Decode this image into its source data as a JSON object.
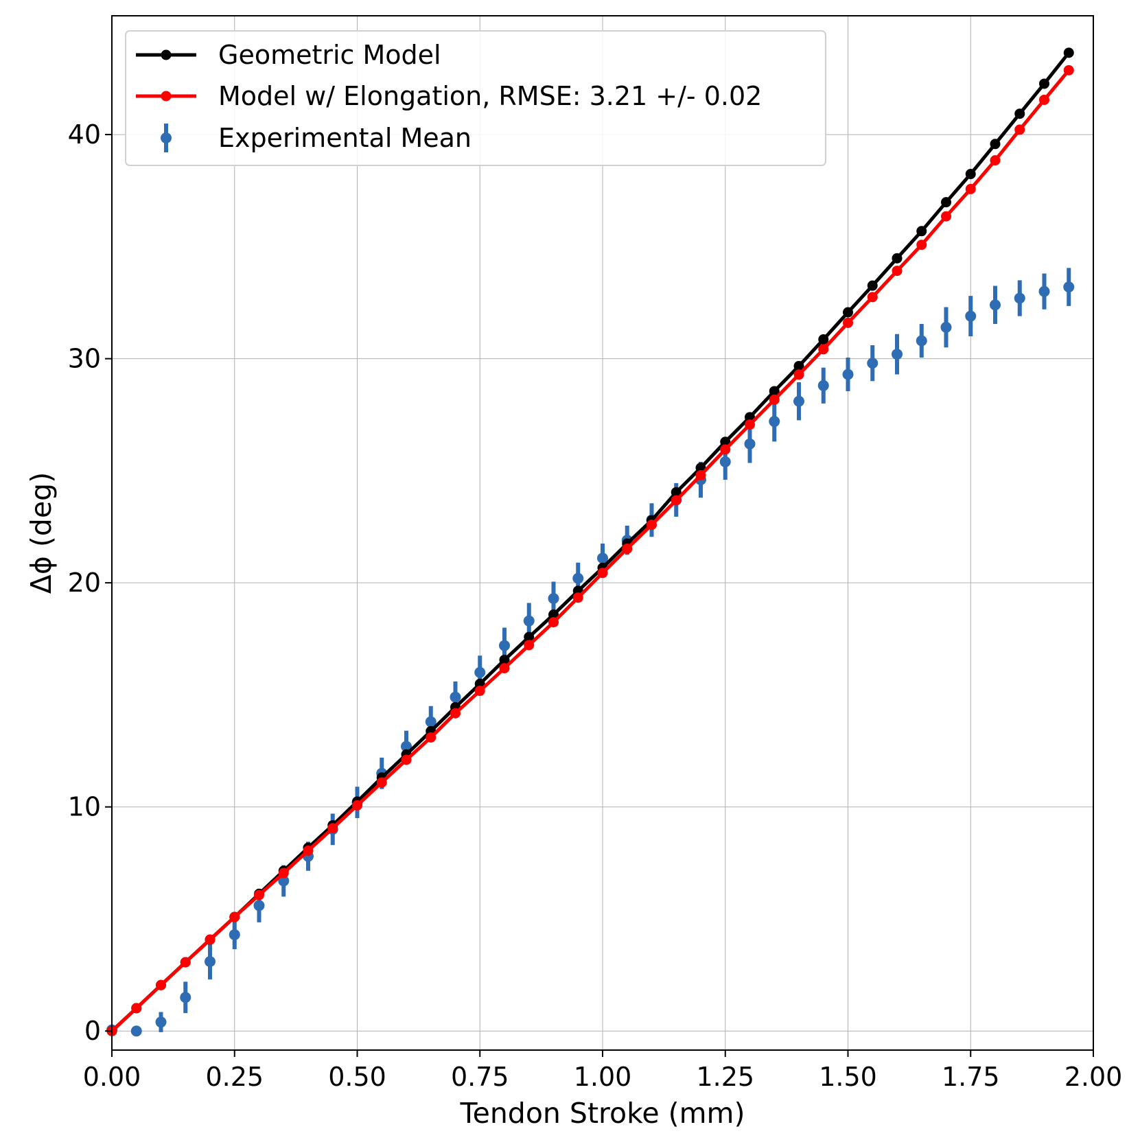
{
  "chart_data": {
    "type": "line",
    "xlabel": "Tendon Stroke (mm)",
    "ylabel": "Δϕ (deg)",
    "xlim": [
      0.0,
      2.0
    ],
    "ylim": [
      -0.85,
      45.3
    ],
    "xticks": [
      "0.00",
      "0.25",
      "0.50",
      "0.75",
      "1.00",
      "1.25",
      "1.50",
      "1.75",
      "2.00"
    ],
    "yticks": [
      "0",
      "10",
      "20",
      "30",
      "40"
    ],
    "grid": true,
    "legend_position": "top-left",
    "x": [
      0.0,
      0.05,
      0.1,
      0.15,
      0.2,
      0.25,
      0.3,
      0.35,
      0.4,
      0.45,
      0.5,
      0.55,
      0.6,
      0.65,
      0.7,
      0.75,
      0.8,
      0.85,
      0.9,
      0.95,
      1.0,
      1.05,
      1.1,
      1.15,
      1.2,
      1.25,
      1.3,
      1.35,
      1.4,
      1.45,
      1.5,
      1.55,
      1.6,
      1.65,
      1.7,
      1.75,
      1.8,
      1.85,
      1.9,
      1.95
    ],
    "series": [
      {
        "name": "Geometric Model",
        "color": "#000000",
        "values": [
          0.0,
          1.02,
          2.05,
          3.07,
          4.08,
          5.09,
          6.12,
          7.15,
          8.18,
          9.18,
          10.24,
          11.31,
          12.34,
          13.38,
          14.45,
          15.49,
          16.56,
          17.58,
          18.58,
          19.64,
          20.67,
          21.75,
          22.79,
          24.04,
          25.13,
          26.29,
          27.39,
          28.55,
          29.67,
          30.86,
          32.07,
          33.26,
          34.48,
          35.69,
          36.98,
          38.24,
          39.58,
          40.93,
          42.27,
          43.65
        ]
      },
      {
        "name": "Model w/ Elongation, RMSE: 3.21 +/- 0.02",
        "color": "#ff0000",
        "values": [
          0.0,
          1.02,
          2.05,
          3.07,
          4.08,
          5.09,
          6.07,
          7.05,
          8.05,
          9.05,
          10.07,
          11.09,
          12.1,
          13.1,
          14.18,
          15.18,
          16.19,
          17.22,
          18.24,
          19.34,
          20.44,
          21.52,
          22.59,
          23.68,
          24.8,
          25.95,
          27.06,
          28.17,
          29.29,
          30.42,
          31.6,
          32.75,
          33.92,
          35.08,
          36.35,
          37.57,
          38.85,
          40.22,
          41.55,
          42.87
        ]
      },
      {
        "name": "Experimental Mean",
        "color": "#2e6cb3",
        "values": [
          0.05,
          0.0,
          0.4,
          1.5,
          3.1,
          4.3,
          5.6,
          6.7,
          7.8,
          9.0,
          10.2,
          11.5,
          12.7,
          13.8,
          14.9,
          16.0,
          17.2,
          18.3,
          19.3,
          20.2,
          21.1,
          21.9,
          22.8,
          23.7,
          24.6,
          25.4,
          26.2,
          27.2,
          28.1,
          28.8,
          29.3,
          29.8,
          30.2,
          30.8,
          31.4,
          31.9,
          32.4,
          32.7,
          33.0,
          33.2
        ],
        "errors": [
          0.0,
          0.0,
          0.45,
          0.7,
          0.8,
          0.65,
          0.75,
          0.7,
          0.65,
          0.7,
          0.7,
          0.7,
          0.7,
          0.7,
          0.7,
          0.75,
          0.8,
          0.8,
          0.75,
          0.7,
          0.65,
          0.65,
          0.75,
          0.75,
          0.8,
          0.8,
          0.85,
          0.9,
          0.85,
          0.8,
          0.75,
          0.8,
          0.9,
          0.75,
          0.9,
          0.9,
          0.85,
          0.8,
          0.8,
          0.85
        ]
      }
    ]
  }
}
